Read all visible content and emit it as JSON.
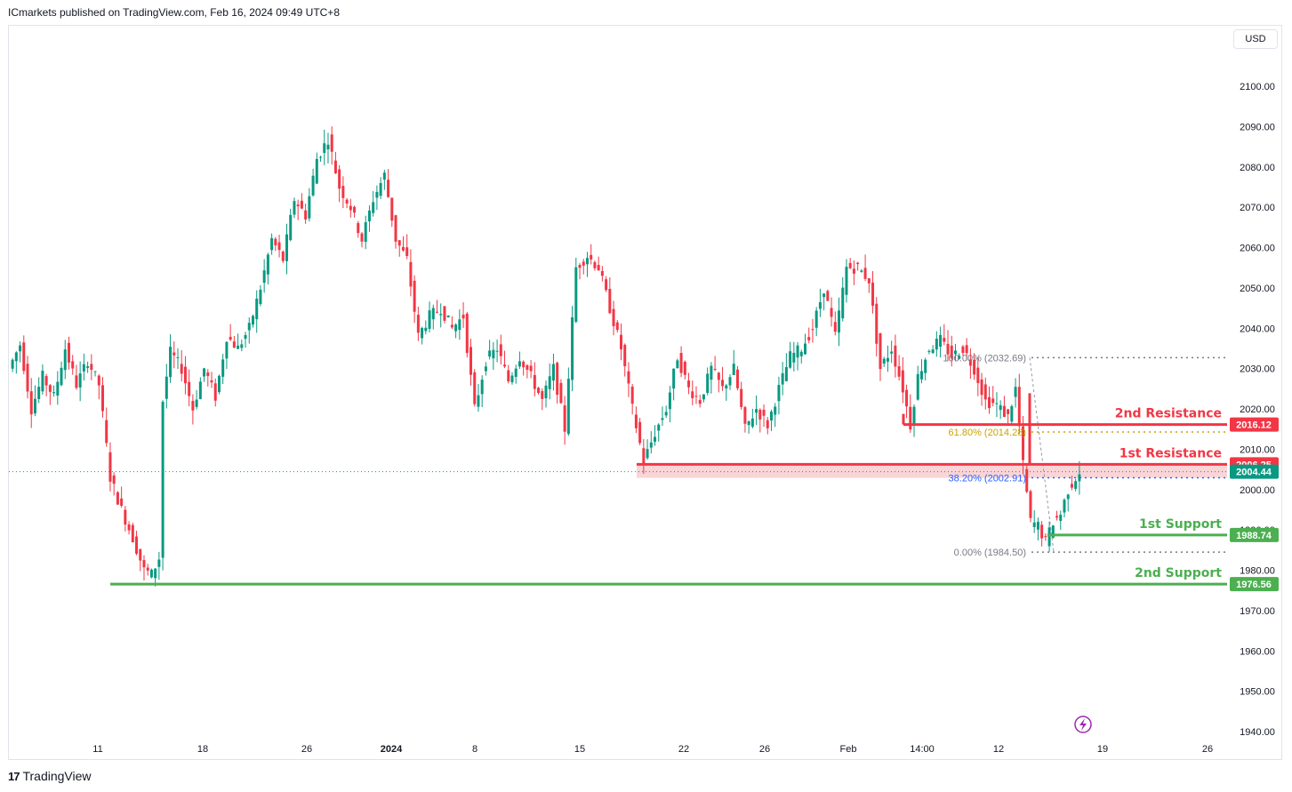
{
  "header": {
    "publisher": "ICmarkets published on TradingView.com, Feb 16, 2024 09:49 UTC+8"
  },
  "currency_button": "USD",
  "brand": {
    "logo": "17",
    "name": "TradingView"
  },
  "colors": {
    "up": "#089981",
    "down": "#f23645",
    "resistance": "#f23645",
    "support": "#4caf50",
    "zone": "#f8c6ca",
    "fib_dots": "#787b86",
    "fib_618": "#c9a400",
    "fib_382": "#2962ff",
    "last_price": "#089981"
  },
  "chart_data": {
    "type": "candlestick",
    "symbol_quote": "USD",
    "y_axis": {
      "range": [
        1937,
        2110
      ],
      "ticks": [
        1940,
        1950,
        1960,
        1970,
        1980,
        1990,
        2000,
        2010,
        2020,
        2030,
        2040,
        2050,
        2060,
        2070,
        2080,
        2090,
        2100
      ],
      "tick_labels": [
        "1940.00",
        "1950.00",
        "1960.00",
        "1970.00",
        "1980.00",
        "1990.00",
        "2000.00",
        "2010.00",
        "2020.00",
        "2030.00",
        "2040.00",
        "2050.00",
        "2060.00",
        "2070.00",
        "2080.00",
        "2090.00",
        "2100.00"
      ]
    },
    "x_axis": {
      "tick_labels": [
        "11",
        "18",
        "26",
        "2024",
        "8",
        "15",
        "22",
        "26",
        "Feb",
        "14:00",
        "12",
        "19",
        "26"
      ],
      "bold_label": "2024"
    },
    "price_path": [
      {
        "t": 0,
        "p": 2030
      },
      {
        "t": 3,
        "p": 2036
      },
      {
        "t": 6,
        "p": 2020
      },
      {
        "t": 9,
        "p": 2028
      },
      {
        "t": 12,
        "p": 2023
      },
      {
        "t": 15,
        "p": 2035
      },
      {
        "t": 18,
        "p": 2026
      },
      {
        "t": 21,
        "p": 2032
      },
      {
        "t": 24,
        "p": 2026
      },
      {
        "t": 27,
        "p": 2003
      },
      {
        "t": 30,
        "p": 1995
      },
      {
        "t": 33,
        "p": 1988
      },
      {
        "t": 36,
        "p": 1980
      },
      {
        "t": 38,
        "p": 1979
      },
      {
        "t": 40,
        "p": 1983
      },
      {
        "t": 41,
        "p": 2022
      },
      {
        "t": 43,
        "p": 2034
      },
      {
        "t": 46,
        "p": 2030
      },
      {
        "t": 49,
        "p": 2020
      },
      {
        "t": 52,
        "p": 2030
      },
      {
        "t": 55,
        "p": 2023
      },
      {
        "t": 58,
        "p": 2038
      },
      {
        "t": 61,
        "p": 2035
      },
      {
        "t": 64,
        "p": 2040
      },
      {
        "t": 67,
        "p": 2050
      },
      {
        "t": 70,
        "p": 2062
      },
      {
        "t": 73,
        "p": 2057
      },
      {
        "t": 76,
        "p": 2072
      },
      {
        "t": 79,
        "p": 2068
      },
      {
        "t": 82,
        "p": 2082
      },
      {
        "t": 85,
        "p": 2087
      },
      {
        "t": 88,
        "p": 2075
      },
      {
        "t": 91,
        "p": 2070
      },
      {
        "t": 94,
        "p": 2062
      },
      {
        "t": 97,
        "p": 2072
      },
      {
        "t": 100,
        "p": 2078
      },
      {
        "t": 103,
        "p": 2062
      },
      {
        "t": 106,
        "p": 2057
      },
      {
        "t": 109,
        "p": 2038
      },
      {
        "t": 112,
        "p": 2043
      },
      {
        "t": 115,
        "p": 2045
      },
      {
        "t": 118,
        "p": 2040
      },
      {
        "t": 121,
        "p": 2043
      },
      {
        "t": 124,
        "p": 2020
      },
      {
        "t": 127,
        "p": 2032
      },
      {
        "t": 130,
        "p": 2035
      },
      {
        "t": 133,
        "p": 2027
      },
      {
        "t": 136,
        "p": 2033
      },
      {
        "t": 139,
        "p": 2028
      },
      {
        "t": 142,
        "p": 2022
      },
      {
        "t": 145,
        "p": 2030
      },
      {
        "t": 148,
        "p": 2015
      },
      {
        "t": 151,
        "p": 2055
      },
      {
        "t": 154,
        "p": 2058
      },
      {
        "t": 157,
        "p": 2055
      },
      {
        "t": 160,
        "p": 2045
      },
      {
        "t": 163,
        "p": 2035
      },
      {
        "t": 166,
        "p": 2020
      },
      {
        "t": 169,
        "p": 2007
      },
      {
        "t": 172,
        "p": 2014
      },
      {
        "t": 175,
        "p": 2020
      },
      {
        "t": 178,
        "p": 2033
      },
      {
        "t": 181,
        "p": 2025
      },
      {
        "t": 184,
        "p": 2022
      },
      {
        "t": 187,
        "p": 2030
      },
      {
        "t": 190,
        "p": 2025
      },
      {
        "t": 193,
        "p": 2030
      },
      {
        "t": 196,
        "p": 2015
      },
      {
        "t": 199,
        "p": 2020
      },
      {
        "t": 202,
        "p": 2016
      },
      {
        "t": 205,
        "p": 2025
      },
      {
        "t": 208,
        "p": 2033
      },
      {
        "t": 211,
        "p": 2035
      },
      {
        "t": 214,
        "p": 2040
      },
      {
        "t": 217,
        "p": 2050
      },
      {
        "t": 220,
        "p": 2038
      },
      {
        "t": 223,
        "p": 2055
      },
      {
        "t": 226,
        "p": 2055
      },
      {
        "t": 229,
        "p": 2052
      },
      {
        "t": 232,
        "p": 2030
      },
      {
        "t": 235,
        "p": 2035
      },
      {
        "t": 238,
        "p": 2025
      },
      {
        "t": 240,
        "p": 2016
      },
      {
        "t": 242,
        "p": 2028
      },
      {
        "t": 245,
        "p": 2035
      },
      {
        "t": 248,
        "p": 2037
      },
      {
        "t": 251,
        "p": 2033
      },
      {
        "t": 254,
        "p": 2035
      },
      {
        "t": 257,
        "p": 2030
      },
      {
        "t": 260,
        "p": 2022
      },
      {
        "t": 263,
        "p": 2021
      },
      {
        "t": 266,
        "p": 2018
      },
      {
        "t": 268,
        "p": 2025
      },
      {
        "t": 270,
        "p": 2006
      },
      {
        "t": 272,
        "p": 1992
      },
      {
        "t": 274,
        "p": 1991
      },
      {
        "t": 276,
        "p": 1987
      },
      {
        "t": 278,
        "p": 1992
      },
      {
        "t": 280,
        "p": 1994
      },
      {
        "t": 282,
        "p": 2000
      },
      {
        "t": 284,
        "p": 2003
      },
      {
        "t": 285,
        "p": 2004.44
      }
    ],
    "levels": [
      {
        "name": "2nd Resistance",
        "value": 2016.12,
        "label": "2016.12",
        "kind": "resistance"
      },
      {
        "name": "1st Resistance",
        "value": 2006.25,
        "label": "2006.25",
        "kind": "resistance"
      },
      {
        "name": "1st Support",
        "value": 1988.74,
        "label": "1988.74",
        "kind": "support"
      },
      {
        "name": "2nd Support",
        "value": 1976.56,
        "label": "1976.56",
        "kind": "support"
      }
    ],
    "last_price": {
      "value": 2004.44,
      "label": "2004.44"
    },
    "resistance_zone": [
      2002.9,
      2006.25
    ],
    "fibonacci": [
      {
        "ratio": "100.00%",
        "value": 2032.69,
        "label": "100.00% (2032.69)"
      },
      {
        "ratio": "61.80%",
        "value": 2014.28,
        "label": "61.80% (2014.28)"
      },
      {
        "ratio": "38.20%",
        "value": 2002.91,
        "label": "38.20% (2002.91)"
      },
      {
        "ratio": "0.00%",
        "value": 1984.5,
        "label": "0.00% (1984.50)"
      }
    ]
  }
}
